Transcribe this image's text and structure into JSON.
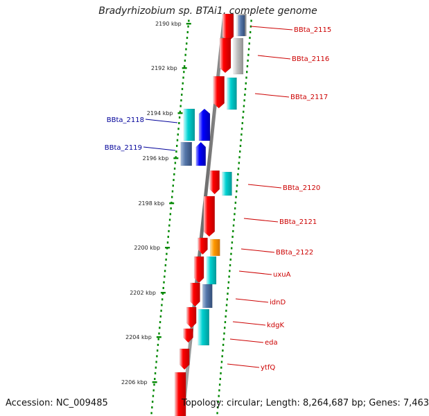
{
  "title": "Bradyrhizobium sp. BTAi1, complete genome",
  "footer": {
    "accession": "Accession: NC_009485",
    "topology": "Topology: circular; Length: 8,264,687 bp; Genes: 7,463"
  },
  "colors": {
    "forward_track": "#ff0000",
    "reverse_track": "#0000ff",
    "label_right": "#cc0000",
    "label_left": "#000099",
    "tick": "#008800",
    "backbone": "#777777",
    "cog_cyan": "#00c8c8",
    "cog_gray": "#b0b0b0",
    "cog_orange": "#ff9900",
    "cog_steel": "#5577aa"
  },
  "scale_ticks": [
    {
      "label": "2190 kbp"
    },
    {
      "label": "2192 kbp"
    },
    {
      "label": "2194 kbp"
    },
    {
      "label": "2196 kbp"
    },
    {
      "label": "2198 kbp"
    },
    {
      "label": "2200 kbp"
    },
    {
      "label": "2202 kbp"
    },
    {
      "label": "2204 kbp"
    },
    {
      "label": "2206 kbp"
    }
  ],
  "gene_labels": [
    {
      "name": "BBta_2115",
      "side": "right"
    },
    {
      "name": "BBta_2116",
      "side": "right"
    },
    {
      "name": "BBta_2117",
      "side": "right"
    },
    {
      "name": "BBta_2118",
      "side": "left"
    },
    {
      "name": "BBta_2119",
      "side": "left"
    },
    {
      "name": "BBta_2120",
      "side": "right"
    },
    {
      "name": "BBta_2121",
      "side": "right"
    },
    {
      "name": "BBta_2122",
      "side": "right"
    },
    {
      "name": "uxuA",
      "side": "right"
    },
    {
      "name": "idnD",
      "side": "right"
    },
    {
      "name": "kdgK",
      "side": "right"
    },
    {
      "name": "eda",
      "side": "right"
    },
    {
      "name": "ytfQ",
      "side": "right"
    }
  ]
}
